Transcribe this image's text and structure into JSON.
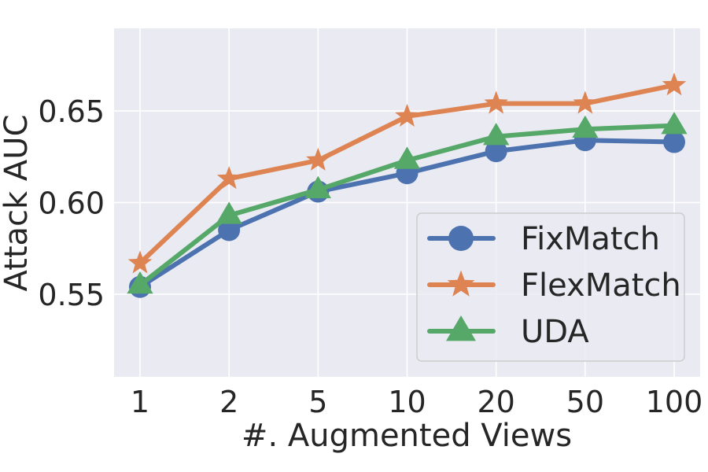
{
  "chart_data": {
    "type": "line",
    "title": "",
    "xlabel": "#. Augmented Views",
    "ylabel": "Attack AUC",
    "categories": [
      "1",
      "2",
      "5",
      "10",
      "20",
      "50",
      "100"
    ],
    "ylim": [
      0.505,
      0.695
    ],
    "yticks": [
      "0.55",
      "0.60",
      "0.65"
    ],
    "grid": true,
    "legend_position": "lower-right",
    "series": [
      {
        "name": "FixMatch",
        "marker": "circle",
        "color": "#4c72b0",
        "values": [
          0.554,
          0.585,
          0.606,
          0.616,
          0.628,
          0.634,
          0.633
        ]
      },
      {
        "name": "FlexMatch",
        "marker": "star",
        "color": "#dd8452",
        "values": [
          0.567,
          0.613,
          0.623,
          0.647,
          0.654,
          0.654,
          0.664
        ]
      },
      {
        "name": "UDA",
        "marker": "triangle",
        "color": "#55a868",
        "values": [
          0.555,
          0.593,
          0.607,
          0.623,
          0.636,
          0.64,
          0.642
        ]
      }
    ]
  }
}
